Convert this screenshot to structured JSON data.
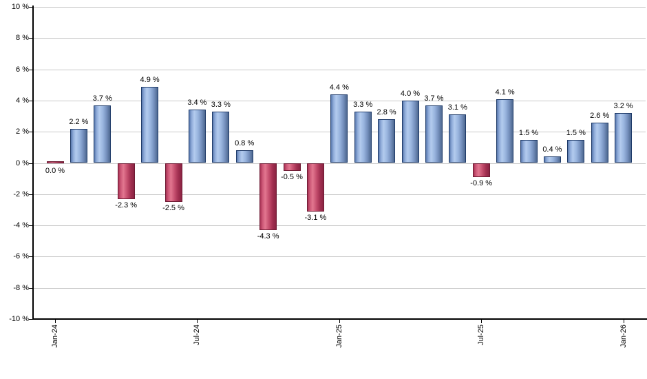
{
  "chart_data": {
    "type": "bar",
    "title": "",
    "xlabel": "",
    "ylabel": "",
    "ylim": [
      -10,
      10
    ],
    "y_step": 2,
    "grid": "horizontal",
    "legend": "none",
    "y_tick_labels": [
      "10 %",
      "8 %",
      "6 %",
      "4 %",
      "2 %",
      "0 %",
      "-2 %",
      "-4 %",
      "-6 %",
      "-8 %",
      "-10 %"
    ],
    "x_tick_labels": [
      {
        "label": "Jan-24",
        "month_index": 0
      },
      {
        "label": "Jul-24",
        "month_index": 6
      },
      {
        "label": "Jan-25",
        "month_index": 12
      },
      {
        "label": "Jul-25",
        "month_index": 18
      },
      {
        "label": "Jan-26",
        "month_index": 24
      }
    ],
    "values": [
      0.0,
      2.2,
      3.7,
      -2.3,
      4.9,
      -2.5,
      3.4,
      3.3,
      0.8,
      -4.3,
      -0.5,
      -3.1,
      4.4,
      3.3,
      2.8,
      4.0,
      3.7,
      3.1,
      -0.9,
      4.1,
      1.5,
      0.4,
      1.5,
      2.6,
      3.2
    ],
    "bar_labels": [
      "0.0 %",
      "2.2 %",
      "3.7 %",
      "-2.3 %",
      "4.9 %",
      "-2.5 %",
      "3.4 %",
      "3.3 %",
      "0.8 %",
      "-4.3 %",
      "-0.5 %",
      "-3.1 %",
      "4.4 %",
      "3.3 %",
      "2.8 %",
      "4.0 %",
      "3.7 %",
      "3.1 %",
      "-0.9 %",
      "4.1 %",
      "1.5 %",
      "0.4 %",
      "1.5 %",
      "2.6 %",
      "3.2 %"
    ],
    "colors": {
      "positive_gradient": [
        "#5878ad",
        "#8fabd9",
        "#b3cbee",
        "#98b4de",
        "#748fbc",
        "#4d678f"
      ],
      "positive_border": "#1e3a68",
      "negative_gradient": [
        "#a73254",
        "#cd5877",
        "#e27790",
        "#c54f6e",
        "#a23051",
        "#8a2342"
      ],
      "negative_border": "#6e1a33",
      "gridline": "#c8c8c8",
      "axis": "#000000",
      "label_text": "#000000"
    }
  }
}
